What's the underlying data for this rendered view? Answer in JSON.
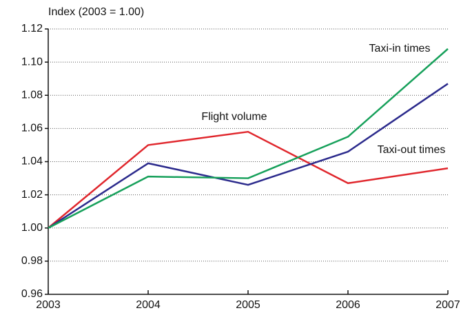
{
  "chart_data": {
    "type": "line",
    "y_label": "Index (2003 = 1.00)",
    "x": [
      2003,
      2004,
      2005,
      2006,
      2007
    ],
    "xlim": [
      2003,
      2007
    ],
    "xticks": [
      2003,
      2004,
      2005,
      2006,
      2007
    ],
    "ylim": [
      0.96,
      1.12
    ],
    "yticks": [
      0.96,
      0.98,
      {
        "value": 1.0,
        "label": "1.00"
      },
      1.02,
      1.04,
      1.06,
      1.08,
      {
        "value": 1.1,
        "label": "1.10"
      },
      1.12
    ],
    "grid": true,
    "series": [
      {
        "name": "Flight volume",
        "color": "#e0262c",
        "values": [
          1.0,
          1.05,
          1.058,
          1.027,
          1.036
        ]
      },
      {
        "name": "Taxi-out times",
        "color": "#2b2a8c",
        "values": [
          1.0,
          1.039,
          1.026,
          1.046,
          1.087
        ]
      },
      {
        "name": "Taxi-in times",
        "color": "#16a05a",
        "values": [
          1.0,
          1.031,
          1.03,
          1.055,
          1.108
        ]
      }
    ]
  }
}
